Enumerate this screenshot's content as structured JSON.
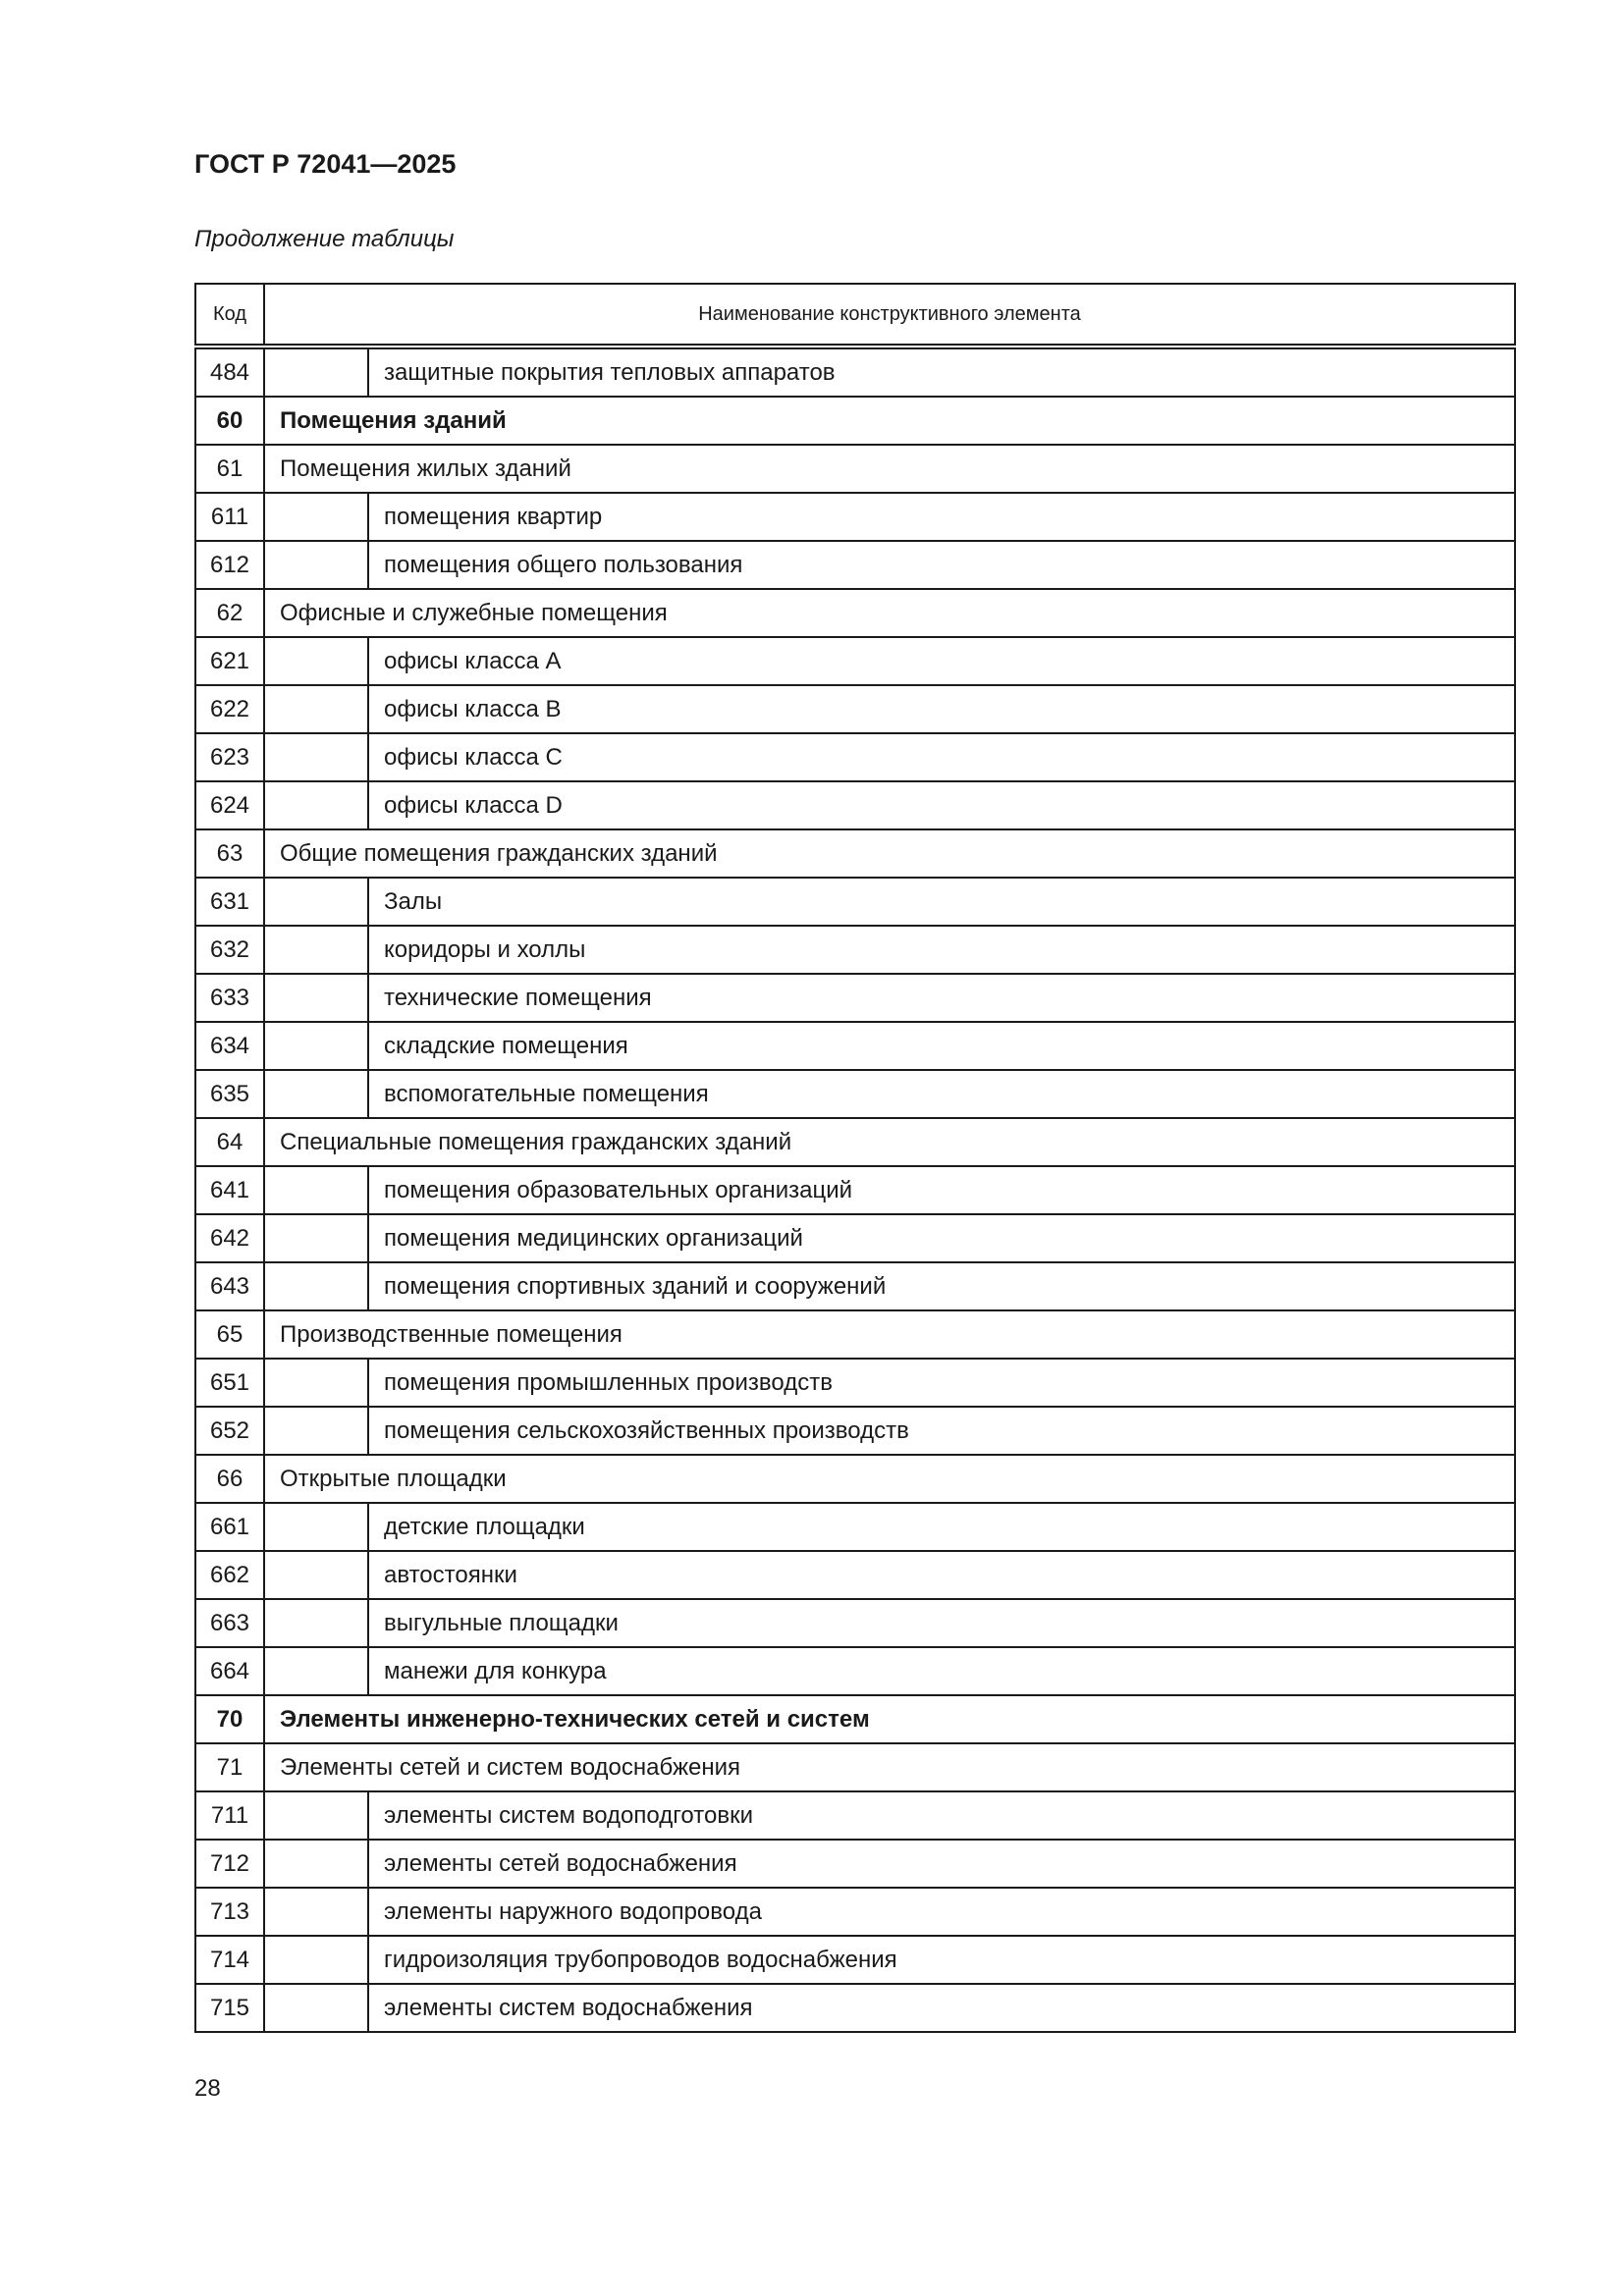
{
  "header": {
    "doc_id": "ГОСТ Р 72041—2025",
    "continuation": "Продолжение таблицы"
  },
  "table": {
    "columns": [
      "Код",
      "Наименование конструктивного элемента"
    ],
    "rows": [
      {
        "code": "484",
        "name": "защитные покрытия тепловых аппаратов",
        "level": "sub"
      },
      {
        "code": "60",
        "name": "Помещения зданий",
        "level": "section"
      },
      {
        "code": "61",
        "name": "Помещения жилых зданий",
        "level": "group"
      },
      {
        "code": "611",
        "name": "помещения квартир",
        "level": "sub"
      },
      {
        "code": "612",
        "name": "помещения общего пользования",
        "level": "sub"
      },
      {
        "code": "62",
        "name": "Офисные и служебные помещения",
        "level": "group"
      },
      {
        "code": "621",
        "name": "офисы класса A",
        "level": "sub"
      },
      {
        "code": "622",
        "name": "офисы класса B",
        "level": "sub"
      },
      {
        "code": "623",
        "name": "офисы класса C",
        "level": "sub"
      },
      {
        "code": "624",
        "name": "офисы класса D",
        "level": "sub"
      },
      {
        "code": "63",
        "name": "Общие помещения гражданских зданий",
        "level": "group"
      },
      {
        "code": "631",
        "name": "Залы",
        "level": "sub"
      },
      {
        "code": "632",
        "name": "коридоры и холлы",
        "level": "sub"
      },
      {
        "code": "633",
        "name": "технические помещения",
        "level": "sub"
      },
      {
        "code": "634",
        "name": "складские помещения",
        "level": "sub"
      },
      {
        "code": "635",
        "name": "вспомогательные помещения",
        "level": "sub"
      },
      {
        "code": "64",
        "name": "Специальные помещения гражданских зданий",
        "level": "group"
      },
      {
        "code": "641",
        "name": "помещения образовательных организаций",
        "level": "sub"
      },
      {
        "code": "642",
        "name": "помещения медицинских организаций",
        "level": "sub"
      },
      {
        "code": "643",
        "name": "помещения спортивных зданий и сооружений",
        "level": "sub"
      },
      {
        "code": "65",
        "name": "Производственные помещения",
        "level": "group"
      },
      {
        "code": "651",
        "name": "помещения промышленных производств",
        "level": "sub"
      },
      {
        "code": "652",
        "name": "помещения сельскохозяйственных производств",
        "level": "sub"
      },
      {
        "code": "66",
        "name": "Открытые площадки",
        "level": "group"
      },
      {
        "code": "661",
        "name": "детские площадки",
        "level": "sub"
      },
      {
        "code": "662",
        "name": "автостоянки",
        "level": "sub"
      },
      {
        "code": "663",
        "name": "выгульные площадки",
        "level": "sub"
      },
      {
        "code": "664",
        "name": "манежи для конкура",
        "level": "sub"
      },
      {
        "code": "70",
        "name": "Элементы инженерно-технических сетей и систем",
        "level": "section"
      },
      {
        "code": "71",
        "name": "Элементы сетей и систем водоснабжения",
        "level": "group"
      },
      {
        "code": "711",
        "name": "элементы систем водоподготовки",
        "level": "sub"
      },
      {
        "code": "712",
        "name": "элементы сетей водоснабжения",
        "level": "sub"
      },
      {
        "code": "713",
        "name": "элементы наружного водопровода",
        "level": "sub"
      },
      {
        "code": "714",
        "name": "гидроизоляция трубопроводов водоснабжения",
        "level": "sub"
      },
      {
        "code": "715",
        "name": "элементы систем водоснабжения",
        "level": "sub"
      }
    ]
  },
  "footer": {
    "page_number": "28"
  }
}
